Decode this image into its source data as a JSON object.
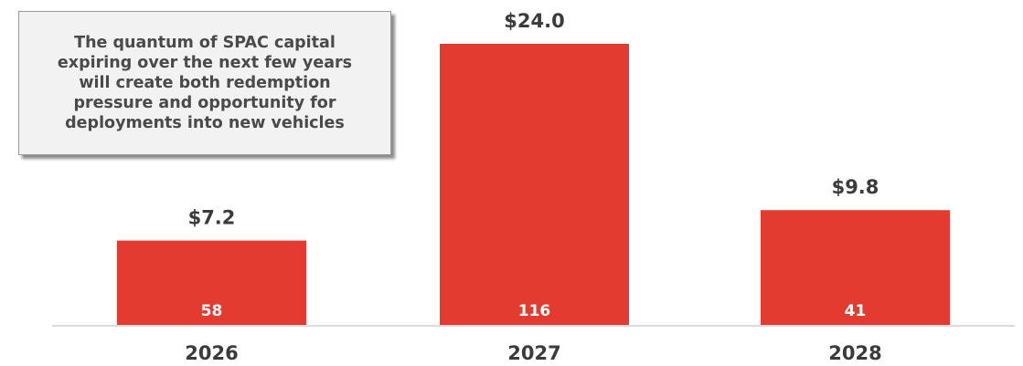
{
  "callout": {
    "text": "The quantum of SPAC capital\nexpiring over the next few years\nwill create both redemption\npressure and opportunity for\ndeployments into new vehicles"
  },
  "colors": {
    "bar": "#e33b30",
    "axis": "#cfcfcf",
    "text": "#3b3b3b",
    "count_text": "#ffffff"
  },
  "chart_data": {
    "type": "bar",
    "categories": [
      "2026",
      "2027",
      "2028"
    ],
    "values": [
      7.2,
      24.0,
      9.8
    ],
    "value_labels": [
      "$7.2",
      "$24.0",
      "$9.8"
    ],
    "counts": [
      58,
      116,
      41
    ],
    "title": "",
    "xlabel": "",
    "ylabel": "",
    "ylim": [
      0,
      24.0
    ],
    "grid": false,
    "legend": "none"
  }
}
